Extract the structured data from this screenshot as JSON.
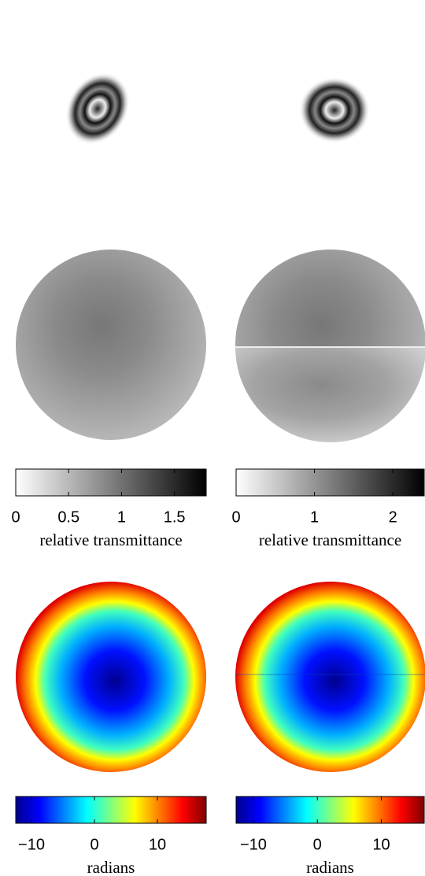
{
  "colorbars": [
    {
      "colormap": "gray_r",
      "lim": [
        0,
        1.8
      ],
      "ticks": [
        0,
        0.5,
        1,
        1.5
      ],
      "label": "relative transmittance"
    },
    {
      "colormap": "gray_r",
      "lim": [
        0,
        2.4
      ],
      "ticks": [
        0,
        1,
        2
      ],
      "label": "relative transmittance"
    },
    {
      "colormap": "jet",
      "lim": [
        -12.5,
        17.75
      ],
      "ticks": [
        {
          "value": -10,
          "label": "−10"
        },
        0,
        10
      ],
      "label": "radians"
    },
    {
      "colormap": "jet",
      "lim": [
        -12.7,
        16.7
      ],
      "ticks": [
        {
          "value": -10,
          "label": "−10"
        },
        0,
        10
      ],
      "label": "radians"
    }
  ]
}
